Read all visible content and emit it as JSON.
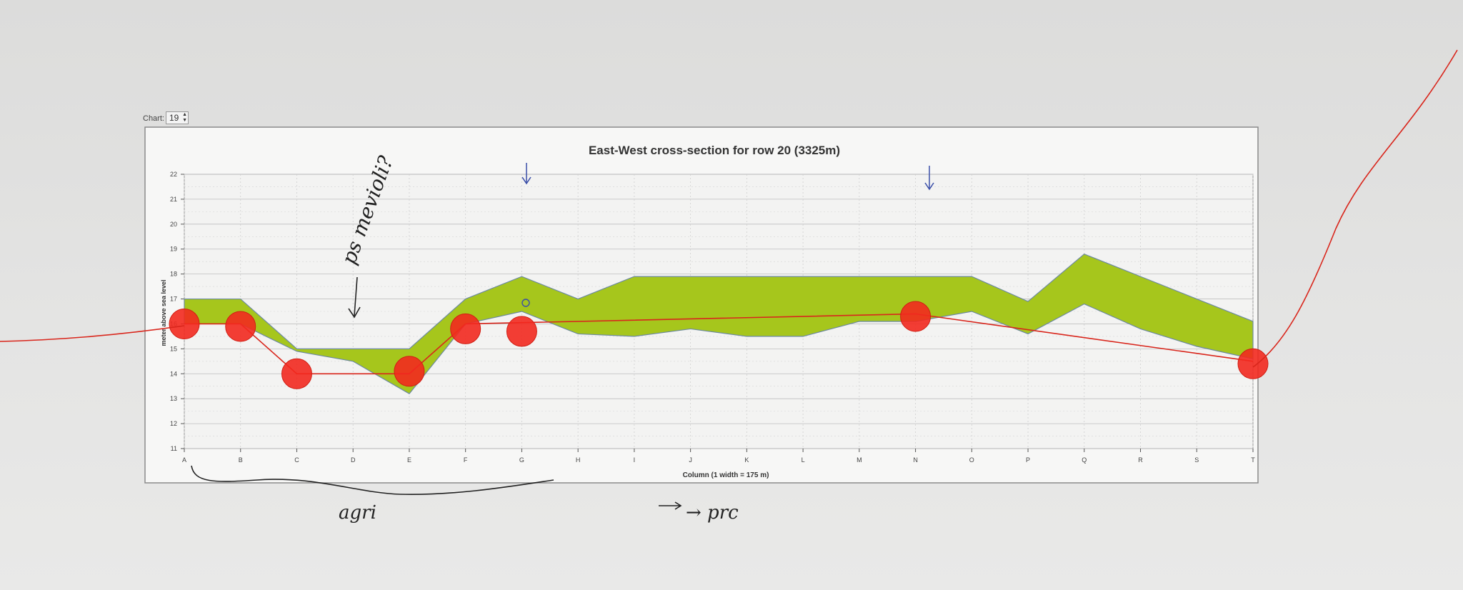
{
  "chart_widget": {
    "label": "Chart:",
    "value": "19"
  },
  "chart_data": {
    "type": "area",
    "title": "East-West cross-section for row 20 (3325m)",
    "xlabel": "Column (1 width = 175 m)",
    "ylabel": "meter above sea level",
    "ylim": [
      11,
      22
    ],
    "yticks": [
      11,
      12,
      13,
      14,
      15,
      16,
      17,
      18,
      19,
      20,
      21,
      22
    ],
    "categories": [
      "A",
      "B",
      "C",
      "D",
      "E",
      "F",
      "G",
      "H",
      "I",
      "J",
      "K",
      "L",
      "M",
      "N",
      "O",
      "P",
      "Q",
      "R",
      "S",
      "T"
    ],
    "grid": true,
    "band": {
      "upper": [
        17.0,
        17.0,
        15.0,
        15.0,
        15.0,
        17.0,
        17.9,
        17.0,
        17.9,
        17.9,
        17.9,
        17.9,
        17.9,
        17.9,
        17.9,
        16.9,
        18.8,
        17.9,
        17.0,
        16.1
      ],
      "lower": [
        16.0,
        16.0,
        14.9,
        14.5,
        13.2,
        16.0,
        16.5,
        15.6,
        15.5,
        15.8,
        15.5,
        15.5,
        16.1,
        16.1,
        16.5,
        15.6,
        16.8,
        15.8,
        15.1,
        14.6
      ],
      "color": "#a6c61c"
    },
    "annotation_line": {
      "color": "#d9261c",
      "points": [
        {
          "x": "A",
          "y": 16.0
        },
        {
          "x": "B",
          "y": 16.0
        },
        {
          "x": "C",
          "y": 14.0
        },
        {
          "x": "E",
          "y": 14.0
        },
        {
          "x": "F",
          "y": 16.0
        },
        {
          "x": "N",
          "y": 16.4
        },
        {
          "x": "T",
          "y": 14.5
        }
      ]
    },
    "markers": {
      "color": "#f2291f",
      "points": [
        {
          "x": "A",
          "y": 16.0
        },
        {
          "x": "B",
          "y": 15.9
        },
        {
          "x": "C",
          "y": 14.0
        },
        {
          "x": "E",
          "y": 14.1
        },
        {
          "x": "F",
          "y": 15.8
        },
        {
          "x": "G",
          "y": 15.7
        },
        {
          "x": "N",
          "y": 16.3
        },
        {
          "x": "T",
          "y": 14.4
        }
      ]
    }
  },
  "handwriting": {
    "note_left": "ps mevioli?",
    "note_under": "agri",
    "note_right": "→ prc"
  }
}
